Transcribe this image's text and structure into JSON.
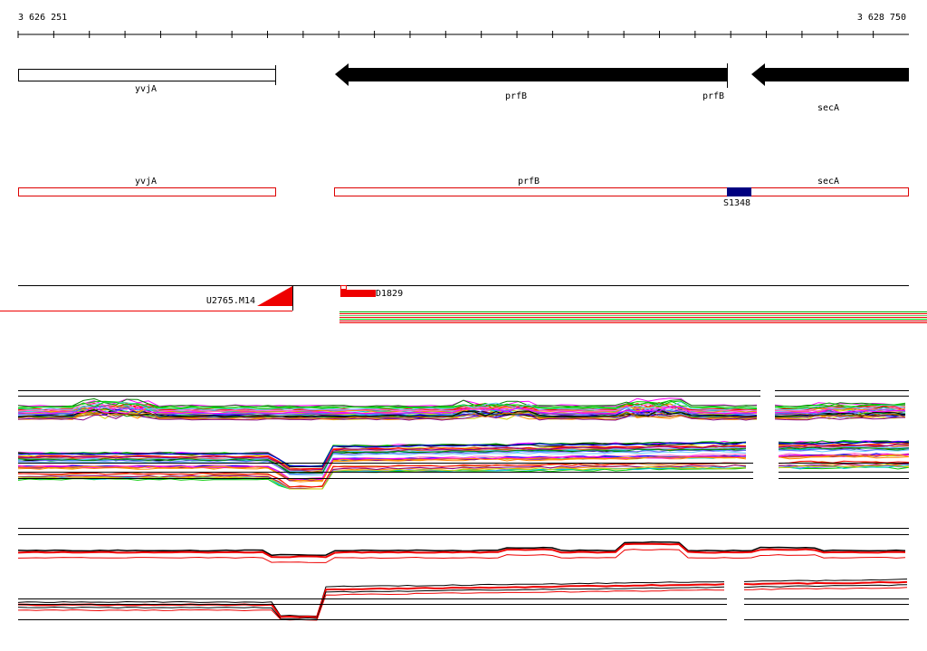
{
  "ruler": {
    "start": "3 626 251",
    "end": "3 628 750"
  },
  "genes": [
    {
      "label": "yvjA"
    },
    {
      "label": "prfB"
    },
    {
      "label": "prfB"
    },
    {
      "label": "secA"
    }
  ],
  "regions": [
    {
      "label": "yvjA"
    },
    {
      "label": "prfB"
    },
    {
      "label": "secA"
    }
  ],
  "site": {
    "label": "S1348"
  },
  "probes": [
    {
      "label": "U2765.M14"
    },
    {
      "label": "D1829"
    }
  ]
}
